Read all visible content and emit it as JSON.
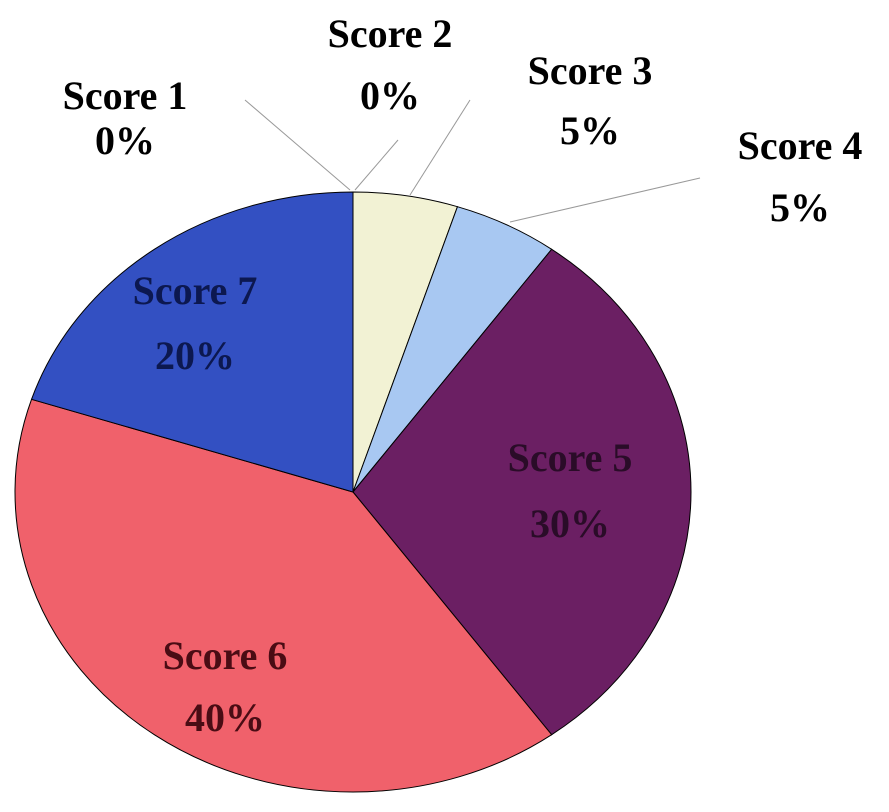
{
  "chart_data": {
    "type": "pie",
    "categories": [
      "Score 1",
      "Score 2",
      "Score 3",
      "Score 4",
      "Score 5",
      "Score 6",
      "Score 7"
    ],
    "values": [
      0,
      0,
      5,
      5,
      30,
      40,
      20
    ],
    "value_labels": [
      "0%",
      "0%",
      "5%",
      "5%",
      "30%",
      "40%",
      "20%"
    ],
    "colors": [
      "#9999ff",
      "#993366",
      "#f2f2d4",
      "#a8c8f2",
      "#6b1f63",
      "#f0616b",
      "#3350c2"
    ]
  }
}
